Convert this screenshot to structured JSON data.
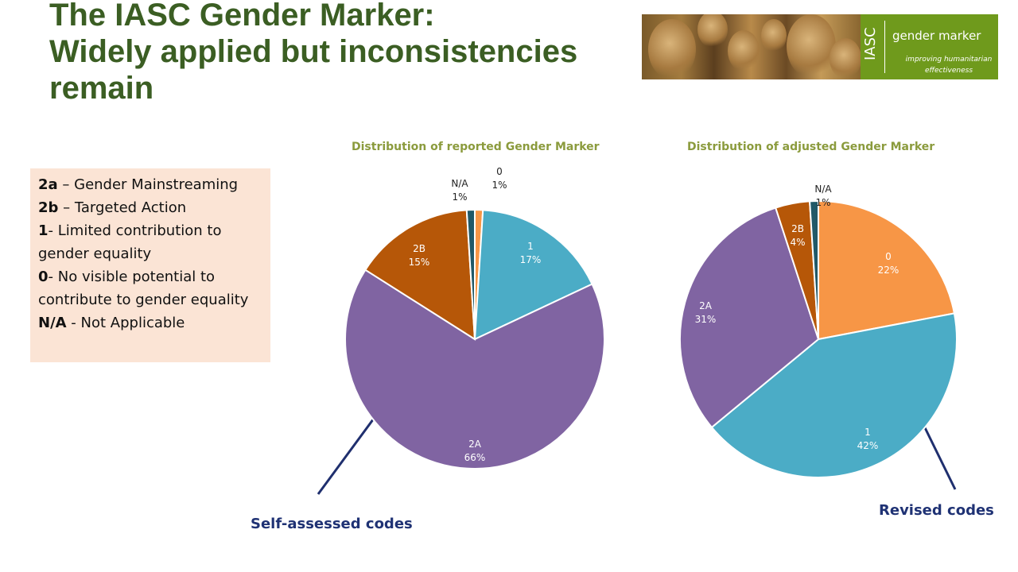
{
  "title": {
    "line1": "The IASC Gender Marker:",
    "line2": "Widely applied but inconsistencies",
    "line3": "remain"
  },
  "banner": {
    "brand": "IASC",
    "name": "gender marker",
    "tagline_1": "improving humanitarian",
    "tagline_2": "effectiveness"
  },
  "legend": [
    {
      "code": "2a",
      "sep": " – ",
      "text": "Gender Mainstreaming"
    },
    {
      "code": "2b",
      "sep": " – ",
      "text": "Targeted Action"
    },
    {
      "code": "1",
      "sep": "- ",
      "text": "Limited contribution to gender equality"
    },
    {
      "code": "0",
      "sep": "- ",
      "text": "No visible potential to contribute to gender equality"
    },
    {
      "code": "N/A",
      "sep": " - ",
      "text": "Not Applicable"
    }
  ],
  "captions": {
    "left": "Self-assessed codes",
    "right": "Revised codes"
  },
  "chart_data": [
    {
      "type": "pie",
      "title": "Distribution of reported Gender Marker",
      "labels": [
        "0",
        "1",
        "2A",
        "2B",
        "N/A"
      ],
      "values": [
        1,
        17,
        66,
        15,
        1
      ],
      "value_labels": [
        "1%",
        "17%",
        "66%",
        "15%",
        "1%"
      ],
      "colors": [
        "#f79646",
        "#4bacc6",
        "#8064a2",
        "#b65708",
        "#215968"
      ]
    },
    {
      "type": "pie",
      "title": "Distribution of adjusted Gender Marker",
      "labels": [
        "0",
        "1",
        "2A",
        "2B",
        "N/A"
      ],
      "values": [
        22,
        42,
        31,
        4,
        1
      ],
      "value_labels": [
        "22%",
        "42%",
        "31%",
        "4%",
        "1%"
      ],
      "colors": [
        "#f79646",
        "#4bacc6",
        "#8064a2",
        "#b65708",
        "#215968"
      ]
    }
  ]
}
